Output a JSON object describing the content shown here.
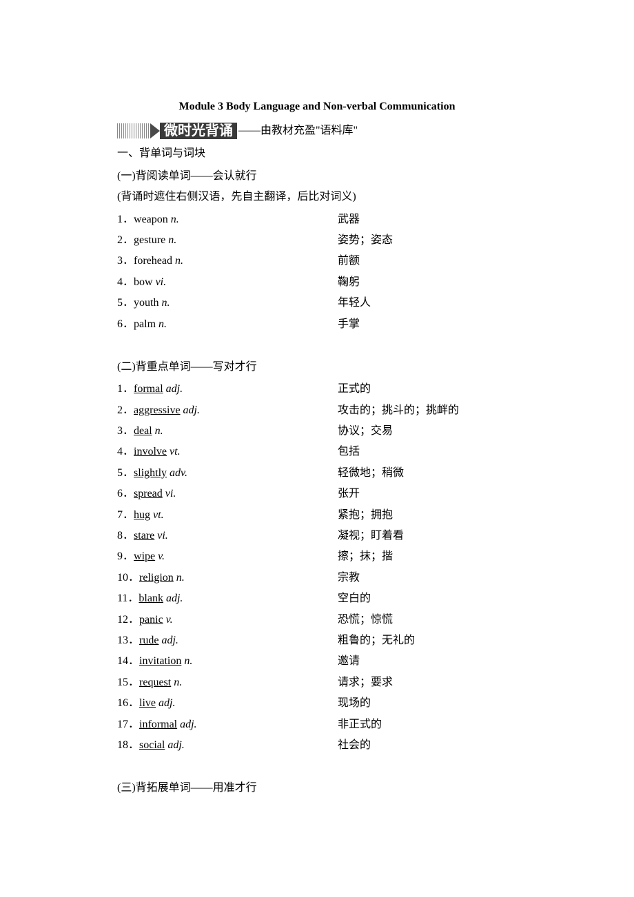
{
  "module_title": "Module 3 Body Language and Non-verbal Communication",
  "header_bold": "微时光背诵",
  "header_rest": "——由教材充盈\"语料库\"",
  "section1_title": "一、背单词与词块",
  "sub1_title": "(一)背阅读单词——会认就行",
  "sub1_note": "(背诵时遮住右侧汉语，先自主翻译，后比对词义)",
  "sub2_title": "(二)背重点单词——写对才行",
  "sub3_title": "(三)背拓展单词——用准才行",
  "list1": [
    {
      "n": "1．",
      "w": "weapon",
      "p": "n.",
      "cn": "武器"
    },
    {
      "n": "2．",
      "w": "gesture",
      "p": "n.",
      "cn": "姿势；姿态"
    },
    {
      "n": "3．",
      "w": "forehead",
      "p": "n.",
      "cn": "前额"
    },
    {
      "n": "4．",
      "w": "bow",
      "p": "vi.",
      "cn": "鞠躬"
    },
    {
      "n": "5．",
      "w": "youth",
      "p": "n.",
      "cn": "年轻人"
    },
    {
      "n": "6．",
      "w": "palm",
      "p": "n.",
      "cn": "手掌"
    }
  ],
  "list2": [
    {
      "n": "1．",
      "w": "formal",
      "p": "adj.",
      "cn": "正式的"
    },
    {
      "n": "2．",
      "w": "aggressive",
      "p": "adj.",
      "cn": "攻击的；挑斗的；挑衅的"
    },
    {
      "n": "3．",
      "w": "deal",
      "p": "n.",
      "cn": "协议；交易"
    },
    {
      "n": "4．",
      "w": "involve",
      "p": "vt.",
      "cn": "包括"
    },
    {
      "n": "5．",
      "w": "slightly",
      "p": "adv.",
      "cn": "轻微地；稍微"
    },
    {
      "n": "6．",
      "w": "spread",
      "p": "vi.",
      "cn": "张开"
    },
    {
      "n": "7．",
      "w": "hug",
      "p": "vt.",
      "cn": "紧抱；拥抱"
    },
    {
      "n": "8．",
      "w": "stare",
      "p": "vi.",
      "cn": "凝视；盯着看"
    },
    {
      "n": "9．",
      "w": "wipe",
      "p": "v.",
      "cn": "擦；抹；揩"
    },
    {
      "n": "10．",
      "w": "religion",
      "p": "n.",
      "cn": "宗教"
    },
    {
      "n": "11．",
      "w": "blank",
      "p": "adj.",
      "cn": "空白的"
    },
    {
      "n": "12．",
      "w": "panic",
      "p": "v.",
      "cn": "恐慌；惊慌"
    },
    {
      "n": "13．",
      "w": "rude",
      "p": "adj.",
      "cn": "粗鲁的；无礼的"
    },
    {
      "n": "14．",
      "w": "invitation",
      "p": "n.",
      "cn": "邀请"
    },
    {
      "n": "15．",
      "w": "request",
      "p": "n.",
      "cn": "请求；要求"
    },
    {
      "n": "16．",
      "w": "live",
      "p": "adj.",
      "cn": "现场的"
    },
    {
      "n": "17．",
      "w": "informal",
      "p": "adj.",
      "cn": "非正式的"
    },
    {
      "n": "18．",
      "w": "social",
      "p": "adj.",
      "cn": "社会的"
    }
  ]
}
